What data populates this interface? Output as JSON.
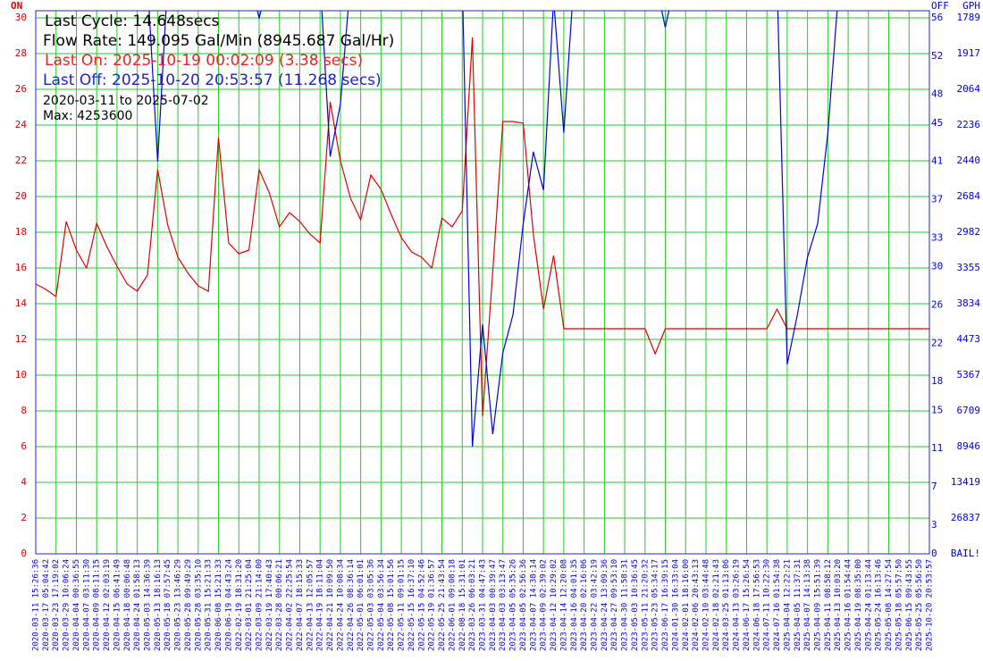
{
  "chart_data": {
    "type": "line",
    "left_axis_label": "ON",
    "right_axis_label": "OFF",
    "gph_axis_label": "GPH",
    "annotations": [
      {
        "text": "Last Cycle: 14.648secs",
        "color": "#000000"
      },
      {
        "text": "Flow Rate: 149.095 Gal/Min (8945.687 Gal/Hr)",
        "color": "#000000"
      },
      {
        "text": "Last On: 2025-10-19 00:02:09 (3.38 secs)",
        "color": "#ee2222"
      },
      {
        "text": "Last Off: 2025-10-20 20:53:57 (11.268 secs)",
        "color": "#2222cc"
      }
    ],
    "notes": [
      "2020-03-11 to 2025-07-02",
      "Max: 4253600"
    ],
    "categories": [
      "2020-03-11 15:26:36",
      "2020-03-17 05:04:42",
      "2020-03-23 17:19:02",
      "2020-03-29 10:06:24",
      "2020-04-04 00:36:55",
      "2020-04-07 03:11:30",
      "2020-04-09 08:11:15",
      "2020-04-12 02:03:19",
      "2020-04-15 06:41:49",
      "2020-04-18 00:06:48",
      "2020-04-24 01:58:13",
      "2020-05-03 14:36:39",
      "2020-05-13 18:16:13",
      "2020-05-18 07:57:45",
      "2020-05-23 13:46:29",
      "2020-05-28 09:49:29",
      "2020-05-28 03:35:10",
      "2020-05-31 15:21:33",
      "2020-06-08 15:21:33",
      "2020-06-19 04:43:24",
      "2022-02-19 18:31:20",
      "2022-03-01 21:25:04",
      "2022-03-09 21:14:00",
      "2022-03-19 17:40:43",
      "2022-03-28 00:06:21",
      "2022-04-02 22:25:54",
      "2022-04-07 18:15:33",
      "2022-04-13 12:05:57",
      "2022-04-19 18:11:04",
      "2022-04-21 10:09:50",
      "2022-04-24 10:08:34",
      "2022-04-26 08:36:14",
      "2022-05-01 06:01:01",
      "2022-05-03 03:05:36",
      "2022-05-04 03:56:34",
      "2022-05-08 15:01:56",
      "2022-05-11 09:01:15",
      "2022-05-15 16:37:10",
      "2022-05-15 04:52:46",
      "2022-05-19 01:36:57",
      "2022-05-25 21:43:54",
      "2022-06-01 09:08:18",
      "2022-08-18 15:31:01",
      "2023-03-26 06:03:21",
      "2023-03-31 04:47:43",
      "2023-04-03 00:39:47",
      "2023-04-03 03:13:47",
      "2023-04-05 05:35:26",
      "2023-04-05 02:56:36",
      "2023-04-07 14:38:14",
      "2023-04-09 02:39:02",
      "2023-04-12 10:29:02",
      "2023-04-14 12:20:08",
      "2023-04-16 04:01:35",
      "2023-04-20 02:16:06",
      "2023-04-22 03:42:19",
      "2023-04-24 13:09:36",
      "2023-04-27 09:53:10",
      "2023-04-30 11:58:31",
      "2023-05-03 10:36:45",
      "2023-05-11 21:20:32",
      "2023-05-23 05:34:17",
      "2023-06-17 16:39:15",
      "2024-01-30 16:33:04",
      "2024-02-01 18:16:00",
      "2024-02-06 20:43:13",
      "2024-02-10 03:44:48",
      "2024-02-18 02:21:43",
      "2024-03-25 01:13:06",
      "2024-04-13 03:26:19",
      "2024-06-17 15:26:54",
      "2024-06-18 17:56:53",
      "2024-07-11 10:22:30",
      "2024-07-16 01:54:38",
      "2025-04-04 12:22:21",
      "2025-04-05 11:37:31",
      "2025-04-07 14:13:38",
      "2025-04-09 15:51:39",
      "2025-04-11 08:58:12",
      "2025-04-13 10:03:20",
      "2025-04-16 01:54:44",
      "2025-04-19 08:35:00",
      "2025-04-24 01:13:44",
      "2025-05-24 16:13:46",
      "2025-05-08 14:27:54",
      "2025-05-18 05:57:50",
      "2025-06-15 09:43:55",
      "2025-05-25 05:56:50",
      "2025-10-20 20:53:57"
    ],
    "series": [
      {
        "color": "#dd0000",
        "axis": "y",
        "values": [
          15.1,
          14.8,
          14.4,
          18.6,
          17.0,
          16.0,
          18.5,
          17.2,
          16.1,
          15.1,
          14.7,
          15.6,
          21.5,
          18.4,
          16.6,
          15.7,
          15.0,
          14.7,
          23.3,
          17.4,
          16.8,
          17.0,
          21.5,
          20.2,
          18.3,
          19.1,
          18.6,
          17.9,
          17.4,
          25.3,
          22.0,
          19.9,
          18.7,
          21.2,
          20.4,
          19.0,
          17.7,
          16.9,
          16.6,
          16.0,
          18.8,
          18.3,
          19.2,
          28.9,
          7.7,
          15.8,
          24.2,
          24.2,
          24.1,
          17.9,
          13.7,
          16.7,
          12.6,
          12.6,
          12.6,
          12.6,
          12.6,
          12.6,
          12.6,
          12.6,
          12.6,
          11.2,
          12.6,
          12.6,
          12.6,
          12.6,
          12.6,
          12.6,
          12.6,
          12.6,
          12.6,
          12.6,
          12.6,
          13.7,
          12.6,
          12.6,
          12.6,
          12.6,
          12.6,
          12.6,
          12.6,
          12.6,
          12.6,
          12.6,
          12.6,
          12.6,
          12.6,
          12.6,
          12.6
        ]
      },
      {
        "color": "#0000dd",
        "axis": "y2",
        "values": [
          null,
          null,
          null,
          null,
          null,
          null,
          null,
          null,
          null,
          null,
          null,
          60,
          41,
          60,
          null,
          null,
          null,
          null,
          null,
          null,
          null,
          60,
          56,
          60,
          null,
          null,
          null,
          null,
          60,
          41.5,
          47,
          60,
          null,
          null,
          null,
          null,
          null,
          null,
          null,
          null,
          null,
          null,
          60,
          11.2,
          24,
          12.5,
          21,
          25,
          34.5,
          42,
          38,
          58,
          44,
          60,
          null,
          null,
          null,
          null,
          null,
          null,
          null,
          60,
          55,
          60,
          null,
          null,
          null,
          null,
          null,
          null,
          null,
          null,
          null,
          60,
          19.8,
          25,
          31,
          34.5,
          44,
          58,
          60,
          null,
          null,
          null,
          null,
          null,
          null,
          null,
          null
        ]
      }
    ],
    "ylim": [
      0,
      30.4
    ],
    "yticks": [
      0,
      2,
      4,
      6,
      8,
      10,
      12,
      14,
      16,
      18,
      20,
      22,
      24,
      26,
      28,
      30
    ],
    "y2lim": [
      0,
      56.75
    ],
    "y2ticks": [
      0,
      3,
      7,
      11,
      15,
      18,
      22,
      26,
      30,
      33,
      37,
      41,
      45,
      48,
      52,
      56
    ],
    "gph_labels": [
      "BAIL!",
      26837,
      13419,
      8946,
      6709,
      5367,
      4473,
      3834,
      3355,
      2982,
      2684,
      2440,
      2236,
      2064,
      1917,
      1789
    ],
    "grid": true,
    "grid_color": "#22cc22"
  }
}
